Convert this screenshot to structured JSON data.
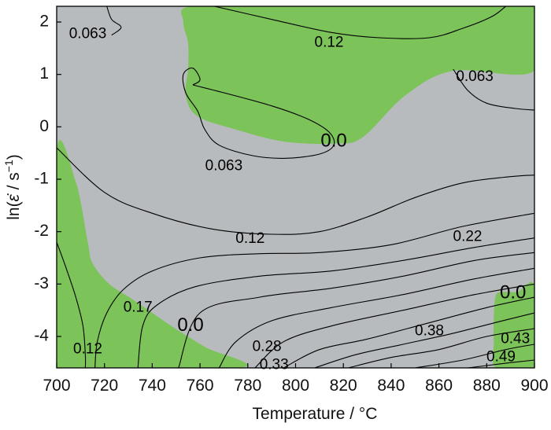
{
  "chart_data": {
    "type": "contour",
    "xlabel": "Temperature / °C",
    "ylabel_parts": {
      "prefix": "ln(",
      "symbol": "ε̇",
      "suffix": " / s",
      "exponent": "−1",
      "close": ")"
    },
    "xlim": [
      700,
      900
    ],
    "ylim": [
      -4.6,
      2.3
    ],
    "x_ticks": [
      700,
      720,
      740,
      760,
      780,
      800,
      820,
      840,
      860,
      880,
      900
    ],
    "y_ticks": [
      2,
      1,
      0,
      -1,
      -2,
      -3,
      -4
    ],
    "x_tick_labels": [
      "700",
      "720",
      "740",
      "760",
      "780",
      "800",
      "820",
      "840",
      "860",
      "880",
      "900"
    ],
    "y_tick_labels": [
      "2",
      "1",
      "0",
      "-1",
      "-2",
      "-3",
      "-4"
    ],
    "colors": {
      "safe_region": "#7cc359",
      "unstable_region": "#b8bbbe",
      "contour": "#000000"
    },
    "regions": [
      {
        "name": "stable",
        "points": [
          [
            756,
            2.3
          ],
          [
            793,
            2.3
          ],
          [
            900,
            2.3
          ],
          [
            900,
            1.07
          ],
          [
            866,
            1.07
          ],
          [
            846,
            0.6
          ],
          [
            828,
            -0.2
          ],
          [
            816,
            -0.32
          ],
          [
            795,
            -0.28
          ],
          [
            775,
            -0.05
          ],
          [
            759,
            0.2
          ],
          [
            754,
            0.6
          ],
          [
            755,
            1.1
          ],
          [
            755,
            1.6
          ],
          [
            753,
            2.0
          ]
        ]
      },
      {
        "name": "stable",
        "points": [
          [
            700,
            -0.45
          ],
          [
            708,
            -1.05
          ],
          [
            713,
            -2.2
          ],
          [
            715,
            -2.6
          ],
          [
            722,
            -3.0
          ],
          [
            732,
            -3.3
          ],
          [
            748,
            -3.8
          ],
          [
            762,
            -4.2
          ],
          [
            777,
            -4.6
          ],
          [
            700,
            -4.6
          ]
        ]
      },
      {
        "name": "stable",
        "points": [
          [
            884,
            -3.2
          ],
          [
            888,
            -3.15
          ],
          [
            893,
            -3.15
          ],
          [
            900,
            -3.05
          ],
          [
            900,
            -4.6
          ],
          [
            884,
            -4.6
          ],
          [
            883,
            -4.1
          ],
          [
            883,
            -3.6
          ]
        ]
      }
    ],
    "contours": [
      {
        "label": "0.063",
        "points": [
          [
            721,
            2.3
          ],
          [
            723,
            2.05
          ],
          [
            727,
            1.9
          ],
          [
            723,
            1.75
          ]
        ]
      },
      {
        "label": "0.12",
        "points": [
          [
            766,
            2.3
          ],
          [
            790,
            2.05
          ],
          [
            815,
            1.8
          ],
          [
            835,
            1.7
          ],
          [
            856,
            1.7
          ],
          [
            870,
            1.88
          ],
          [
            882,
            2.1
          ],
          [
            888,
            2.3
          ]
        ]
      },
      {
        "label": "0.063",
        "points": [
          [
            866,
            1.1
          ],
          [
            872,
            0.7
          ],
          [
            880,
            0.45
          ],
          [
            892,
            0.35
          ],
          [
            900,
            0.32
          ]
        ]
      },
      {
        "label": "0.063",
        "points": [
          [
            757,
            0.8
          ],
          [
            770,
            0.65
          ],
          [
            790,
            0.4
          ],
          [
            805,
            0.15
          ],
          [
            814,
            -0.1
          ],
          [
            816,
            -0.35
          ],
          [
            810,
            -0.52
          ],
          [
            796,
            -0.6
          ],
          [
            782,
            -0.55
          ],
          [
            768,
            -0.35
          ],
          [
            762,
            -0.05
          ],
          [
            759,
            0.3
          ],
          [
            754,
            0.65
          ],
          [
            753,
            1.0
          ],
          [
            757,
            1.12
          ],
          [
            760,
            0.9
          ],
          [
            757,
            0.8
          ]
        ]
      },
      {
        "label": "0.12",
        "points": [
          [
            700,
            -0.4
          ],
          [
            720,
            -1.25
          ],
          [
            740,
            -1.65
          ],
          [
            765,
            -1.95
          ],
          [
            790,
            -2.05
          ],
          [
            810,
            -2.0
          ],
          [
            830,
            -1.72
          ],
          [
            850,
            -1.35
          ],
          [
            870,
            -1.07
          ],
          [
            890,
            -0.95
          ],
          [
            900,
            -0.92
          ]
        ]
      },
      {
        "label": "0.17",
        "points": [
          [
            716,
            -4.6
          ],
          [
            717,
            -4.1
          ],
          [
            721,
            -3.55
          ],
          [
            728,
            -3.1
          ],
          [
            740,
            -2.75
          ],
          [
            760,
            -2.5
          ],
          [
            785,
            -2.42
          ],
          [
            810,
            -2.4
          ],
          [
            840,
            -2.25
          ],
          [
            870,
            -1.9
          ],
          [
            900,
            -1.65
          ]
        ]
      },
      {
        "label": "0.22",
        "points": [
          [
            734,
            -4.6
          ],
          [
            736,
            -3.8
          ],
          [
            742,
            -3.4
          ],
          [
            758,
            -3.05
          ],
          [
            785,
            -2.85
          ],
          [
            815,
            -2.75
          ],
          [
            845,
            -2.55
          ],
          [
            875,
            -2.3
          ],
          [
            900,
            -2.12
          ]
        ]
      },
      {
        "label": "",
        "points": [
          [
            751,
            -4.6
          ],
          [
            760,
            -3.55
          ],
          [
            785,
            -3.25
          ],
          [
            815,
            -3.08
          ],
          [
            845,
            -2.85
          ],
          [
            875,
            -2.55
          ],
          [
            900,
            -2.4
          ]
        ]
      },
      {
        "label": "",
        "points": [
          [
            768,
            -4.6
          ],
          [
            775,
            -4.1
          ],
          [
            790,
            -3.7
          ],
          [
            815,
            -3.45
          ],
          [
            845,
            -3.2
          ],
          [
            875,
            -2.9
          ],
          [
            900,
            -2.7
          ]
        ]
      },
      {
        "label": "0.28",
        "points": [
          [
            783,
            -4.6
          ],
          [
            795,
            -4.1
          ],
          [
            815,
            -3.8
          ],
          [
            845,
            -3.5
          ],
          [
            875,
            -3.2
          ],
          [
            900,
            -3.0
          ]
        ]
      },
      {
        "label": "",
        "points": [
          [
            795,
            -4.6
          ],
          [
            810,
            -4.25
          ],
          [
            830,
            -4.05
          ],
          [
            855,
            -3.75
          ],
          [
            880,
            -3.45
          ],
          [
            900,
            -3.25
          ]
        ]
      },
      {
        "label": "0.33",
        "points": [
          [
            808,
            -4.6
          ],
          [
            825,
            -4.35
          ],
          [
            845,
            -4.15
          ],
          [
            865,
            -3.95
          ],
          [
            885,
            -3.72
          ],
          [
            900,
            -3.55
          ]
        ]
      },
      {
        "label": "0.38",
        "points": [
          [
            822,
            -4.6
          ],
          [
            840,
            -4.4
          ],
          [
            860,
            -4.25
          ],
          [
            880,
            -4.0
          ],
          [
            900,
            -3.85
          ]
        ]
      },
      {
        "label": "0.43",
        "points": [
          [
            850,
            -4.6
          ],
          [
            870,
            -4.45
          ],
          [
            888,
            -4.25
          ],
          [
            900,
            -4.15
          ]
        ]
      },
      {
        "label": "0.49",
        "points": [
          [
            872,
            -4.6
          ],
          [
            890,
            -4.5
          ],
          [
            900,
            -4.45
          ]
        ]
      },
      {
        "label": "0.12",
        "points": [
          [
            700,
            -2.2
          ],
          [
            704,
            -2.7
          ],
          [
            708,
            -3.25
          ],
          [
            711,
            -3.8
          ],
          [
            712,
            -4.35
          ],
          [
            712,
            -4.6
          ]
        ]
      }
    ],
    "contour_labels": [
      {
        "text": "0.063",
        "x": 713,
        "y": 1.77,
        "size": "normal"
      },
      {
        "text": "0.12",
        "x": 814,
        "y": 1.6,
        "size": "normal"
      },
      {
        "text": "0.063",
        "x": 875,
        "y": 0.95,
        "size": "normal"
      },
      {
        "text": "0.0",
        "x": 816,
        "y": -0.28,
        "size": "large"
      },
      {
        "text": "0.063",
        "x": 770,
        "y": -0.75,
        "size": "normal"
      },
      {
        "text": "0.12",
        "x": 781,
        "y": -2.14,
        "size": "normal"
      },
      {
        "text": "0.22",
        "x": 872,
        "y": -2.1,
        "size": "normal"
      },
      {
        "text": "0.17",
        "x": 734,
        "y": -3.45,
        "size": "normal"
      },
      {
        "text": "0.0",
        "x": 756,
        "y": -3.8,
        "size": "large"
      },
      {
        "text": "0.12",
        "x": 713,
        "y": -4.25,
        "size": "normal"
      },
      {
        "text": "0.28",
        "x": 788,
        "y": -4.2,
        "size": "normal"
      },
      {
        "text": "0.33",
        "x": 791,
        "y": -4.55,
        "size": "normal"
      },
      {
        "text": "0.38",
        "x": 856,
        "y": -3.9,
        "size": "normal"
      },
      {
        "text": "0.0",
        "x": 891,
        "y": -3.18,
        "size": "large"
      },
      {
        "text": "0.43",
        "x": 892,
        "y": -4.05,
        "size": "normal"
      },
      {
        "text": "0.49",
        "x": 886,
        "y": -4.4,
        "size": "normal"
      }
    ]
  }
}
